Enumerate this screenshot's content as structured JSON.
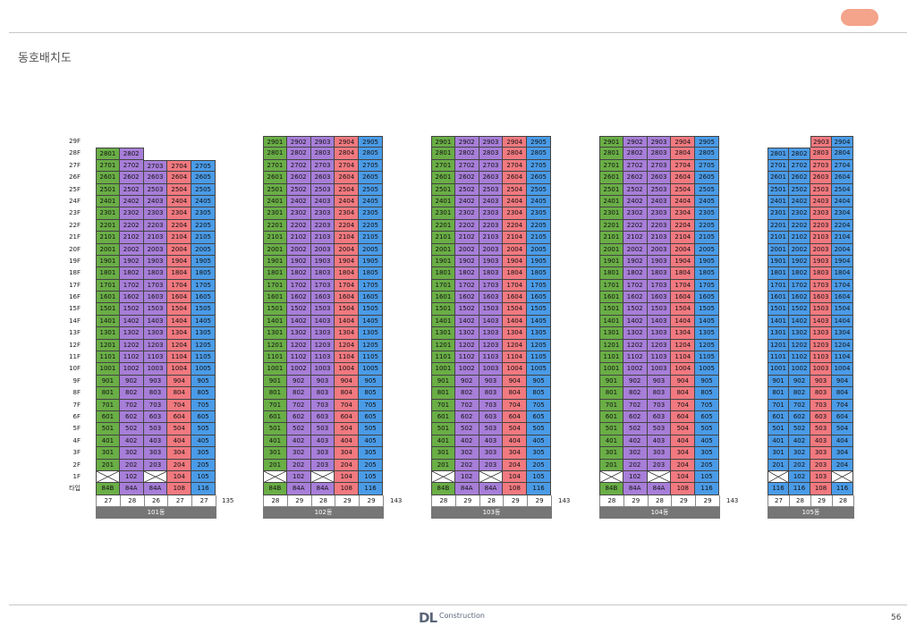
{
  "header": {
    "title": "동호배치도"
  },
  "colors": {
    "84B": "#6aae46",
    "84A": "#a77ed8",
    "108": "#f1797f",
    "116": "#4a9be7"
  },
  "floor_labels": [
    "29F",
    "28F",
    "27F",
    "26F",
    "25F",
    "24F",
    "23F",
    "22F",
    "21F",
    "20F",
    "19F",
    "18F",
    "17F",
    "16F",
    "15F",
    "14F",
    "13F",
    "12F",
    "11F",
    "10F",
    "9F",
    "8F",
    "7F",
    "6F",
    "5F",
    "4F",
    "3F",
    "2F",
    "1F",
    "타입"
  ],
  "buildings": [
    {
      "name": "101동",
      "types": [
        "84B",
        "84A",
        "84A",
        "108",
        "116"
      ],
      "lines": [
        "01",
        "02",
        "03",
        "04",
        "05"
      ],
      "top_floor": [
        28,
        28,
        27,
        27,
        27
      ],
      "first_floor": [
        "x",
        "102",
        "x",
        "104",
        "105"
      ],
      "counts": [
        "27",
        "28",
        "26",
        "27",
        "27"
      ],
      "total": "135"
    },
    {
      "name": "102동",
      "types": [
        "84B",
        "84A",
        "84A",
        "108",
        "116"
      ],
      "lines": [
        "01",
        "02",
        "03",
        "04",
        "05"
      ],
      "top_floor": [
        29,
        29,
        29,
        29,
        29
      ],
      "first_floor": [
        "x",
        "102",
        "x",
        "104",
        "105"
      ],
      "counts": [
        "28",
        "29",
        "28",
        "29",
        "29"
      ],
      "total": "143"
    },
    {
      "name": "103동",
      "types": [
        "84B",
        "84A",
        "84A",
        "108",
        "116"
      ],
      "lines": [
        "01",
        "02",
        "03",
        "04",
        "05"
      ],
      "top_floor": [
        29,
        29,
        29,
        29,
        29
      ],
      "first_floor": [
        "x",
        "102",
        "x",
        "104",
        "105"
      ],
      "counts": [
        "28",
        "29",
        "28",
        "29",
        "29"
      ],
      "total": "143"
    },
    {
      "name": "104동",
      "types": [
        "84B",
        "84A",
        "84A",
        "108",
        "116"
      ],
      "lines": [
        "01",
        "02",
        "03",
        "04",
        "05"
      ],
      "top_floor": [
        29,
        29,
        29,
        29,
        29
      ],
      "first_floor": [
        "x",
        "102",
        "x",
        "104",
        "105"
      ],
      "counts": [
        "28",
        "29",
        "28",
        "29",
        "29"
      ],
      "total": "143"
    },
    {
      "name": "105동",
      "types": [
        "116",
        "116",
        "108",
        "116"
      ],
      "lines": [
        "01",
        "02",
        "03",
        "04"
      ],
      "top_floor": [
        28,
        28,
        29,
        29
      ],
      "first_floor": [
        "x",
        "102",
        "103",
        "x"
      ],
      "counts": [
        "27",
        "28",
        "29",
        "28"
      ],
      "total": ""
    }
  ],
  "footer": {
    "logo": "DL",
    "brand": "Construction",
    "page": "56"
  }
}
